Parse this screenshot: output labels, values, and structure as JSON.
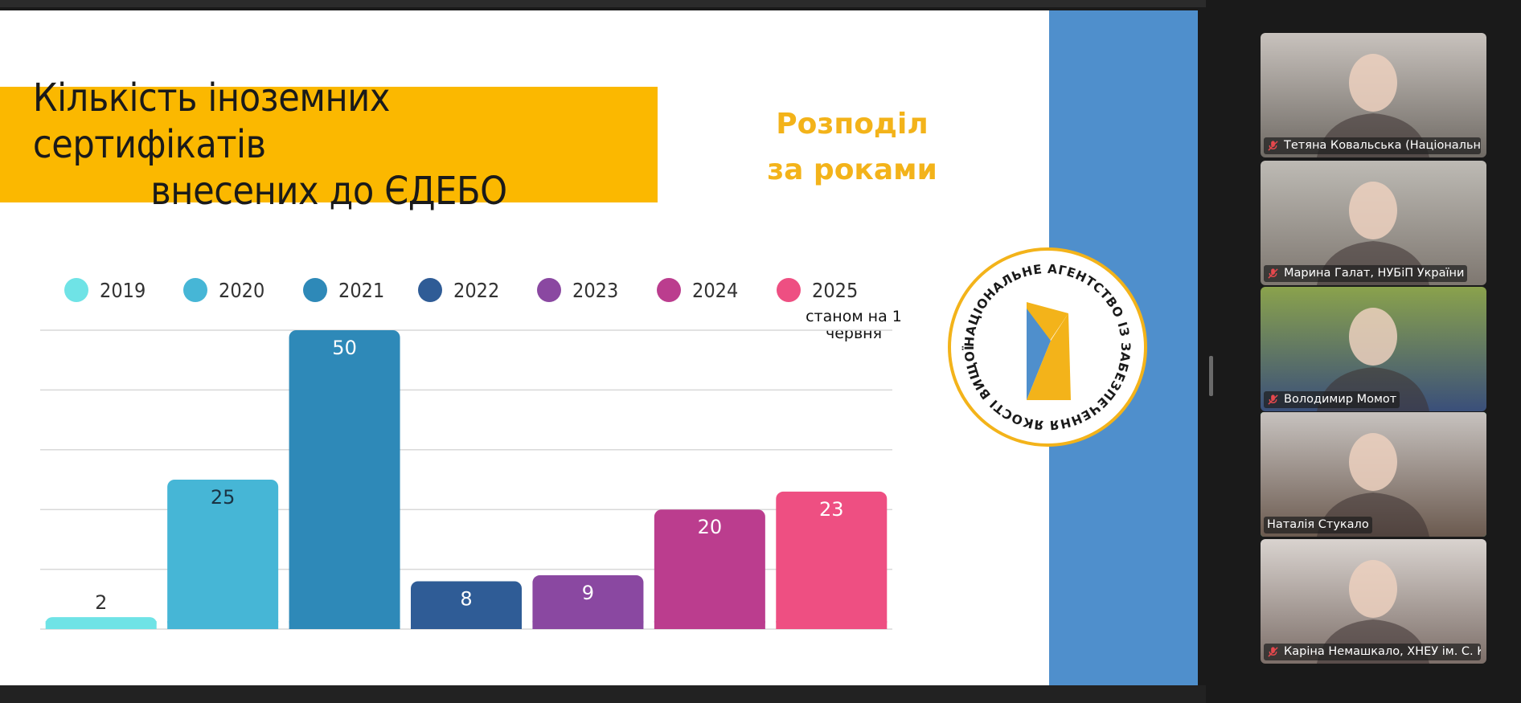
{
  "slide": {
    "title_line1": "Кількість іноземних сертифікатів",
    "title_line2": "внесених до ЄДЕБО",
    "subtitle_line1": "Розподіл",
    "subtitle_line2": "за роками",
    "note_line1": "станом на 1",
    "note_line2": "червня",
    "logo_text": "НАЦІОНАЛЬНЕ АГЕНТСТВО ІЗ ЗАБЕЗПЕЧЕННЯ ЯКОСТІ ВИЩОЇ ОСВІТИ",
    "colors": {
      "title_bg": "#fbb800",
      "subtitle": "#f3b31a",
      "side_panel": "#4f8fcc",
      "logo_yellow": "#f3b31a",
      "logo_blue": "#4f8fcc"
    }
  },
  "chart_data": {
    "type": "bar",
    "categories": [
      "2019",
      "2020",
      "2021",
      "2022",
      "2023",
      "2024",
      "2025"
    ],
    "values": [
      2,
      25,
      50,
      8,
      9,
      20,
      23
    ],
    "colors": [
      "#6fe3e6",
      "#46b6d6",
      "#2e89b8",
      "#2f5c96",
      "#8a48a1",
      "#bb3d8e",
      "#ee4f82"
    ],
    "ylim": [
      0,
      50
    ],
    "grid": true,
    "legend": "top",
    "title": "",
    "xlabel": "",
    "ylabel": ""
  },
  "participants": [
    {
      "name": "Тетяна Ковальська (Національне ...",
      "muted": true,
      "active": false,
      "bg": [
        "#c8c2bd",
        "#6f6a64"
      ]
    },
    {
      "name": "Марина Галат, НУБіП України",
      "muted": true,
      "active": false,
      "bg": [
        "#bdbab4",
        "#7e7770"
      ]
    },
    {
      "name": "Володимир Момот",
      "muted": true,
      "active": false,
      "bg": [
        "#8aa24c",
        "#3a4f7a"
      ]
    },
    {
      "name": "Наталія Стукало",
      "muted": false,
      "active": true,
      "bg": [
        "#c7c2bf",
        "#6b5a4f"
      ]
    },
    {
      "name": "Каріна Немашкало, ХНЕУ ім. С. Ку...",
      "muted": true,
      "active": false,
      "bg": [
        "#d9d3cf",
        "#7d6f69"
      ]
    }
  ]
}
